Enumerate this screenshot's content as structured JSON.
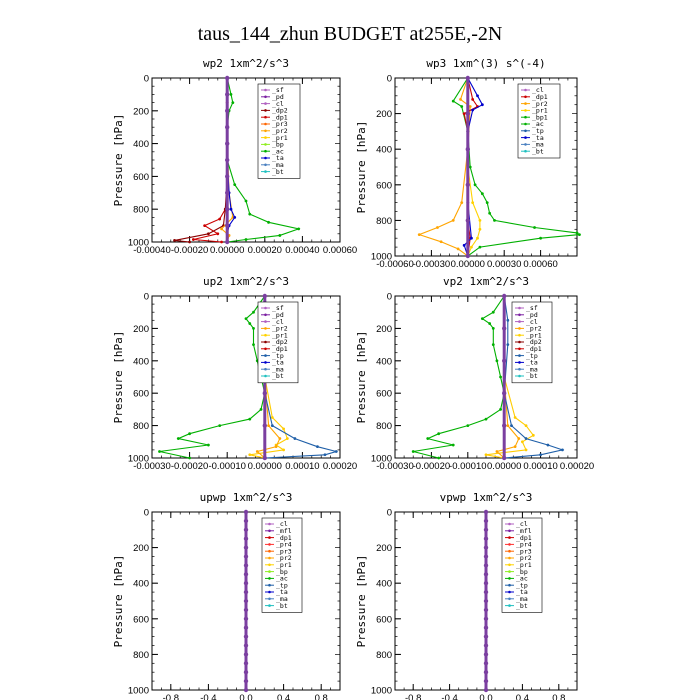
{
  "title": "taus_144_zhun  BUDGET at255E,-2N",
  "chart_data": [
    {
      "id": "wp2",
      "type": "line",
      "title": "wp2  1xm^2/s^3",
      "ylabel": "Pressure [hPa]",
      "ylim": [
        1000,
        0
      ],
      "xlim": [
        -0.0004,
        0.0006
      ],
      "xticks": [
        -0.0004,
        -0.0002,
        0.0,
        0.0002,
        0.0004,
        0.0006
      ],
      "xticklabels": [
        "-0.00040",
        "-0.00020",
        "0.00000",
        "0.00020",
        "0.00040",
        "0.00060"
      ],
      "yticks": [
        0,
        200,
        400,
        600,
        800,
        1000
      ],
      "legend": [
        "_sf",
        "_pd",
        "_cl",
        "_dp2",
        "_dp1",
        "_pr3",
        "_pr2",
        "_pr1",
        "_bp",
        "_ac",
        "_ta",
        "_ma",
        "_bt"
      ],
      "series": [
        {
          "name": "_dp1",
          "color": "#cc0000",
          "p": [
            0,
            150,
            300,
            500,
            700,
            800,
            860,
            900,
            950,
            985,
            1000
          ],
          "x": [
            0,
            0,
            0,
            0,
            0,
            -1e-05,
            -4e-05,
            -0.00012,
            -5e-05,
            -0.00018,
            -3e-05
          ]
        },
        {
          "name": "_dp2",
          "color": "#8b0000",
          "p": [
            0,
            300,
            600,
            800,
            900,
            950,
            990,
            1000
          ],
          "x": [
            0,
            0,
            0,
            -1e-05,
            -2e-05,
            -0.0001,
            -0.00028,
            -0.0002
          ]
        },
        {
          "name": "_pr1",
          "color": "#ffa500",
          "p": [
            0,
            400,
            700,
            850,
            920,
            960,
            1000
          ],
          "x": [
            0,
            0,
            1e-05,
            3e-05,
            -3e-05,
            1e-05,
            0
          ]
        },
        {
          "name": "_ac",
          "color": "#00b000",
          "p": [
            0,
            100,
            150,
            200,
            300,
            500,
            650,
            750,
            830,
            880,
            920,
            960,
            985,
            1000
          ],
          "x": [
            0,
            2e-05,
            3e-05,
            1e-05,
            0,
            0,
            4e-05,
            0.0001,
            0.00012,
            0.00022,
            0.00038,
            0.00028,
            0.0001,
            0
          ]
        },
        {
          "name": "_tp",
          "color": "#0000cc",
          "p": [
            0,
            500,
            700,
            800,
            850,
            900,
            950,
            1000
          ],
          "x": [
            0,
            0,
            1e-05,
            2e-05,
            4e-05,
            1e-05,
            0,
            0
          ]
        },
        {
          "name": "_bt",
          "color": "#7b3fa0",
          "p": [
            0,
            100,
            200,
            300,
            400,
            500,
            600,
            700,
            800,
            900,
            1000
          ],
          "x": [
            0,
            0,
            0,
            0,
            0,
            0,
            0,
            0,
            0,
            0,
            0
          ]
        }
      ]
    },
    {
      "id": "wp3",
      "type": "line",
      "title": "wp3  1xm^(3) s^(-4)",
      "ylabel": "Pressure [hPa]",
      "ylim": [
        1000,
        0
      ],
      "xlim": [
        -0.0006,
        0.0009
      ],
      "xticks": [
        -0.0006,
        -0.0003,
        0.0,
        0.0003,
        0.0006
      ],
      "xticklabels": [
        "-0.00060",
        "-0.00030",
        "0.00000",
        "0.00030",
        "0.00060"
      ],
      "yticks": [
        0,
        200,
        400,
        600,
        800,
        1000
      ],
      "legend": [
        "_cl",
        "_dp1",
        "_pr2",
        "_pr1",
        "_bp1",
        "_ac",
        "_tp",
        "_ta",
        "_ma",
        "_bt"
      ],
      "series": [
        {
          "name": "_pr1",
          "color": "#ffa500",
          "p": [
            0,
            120,
            160,
            400,
            700,
            800,
            840,
            880,
            920,
            960,
            1000
          ],
          "x": [
            0,
            -6e-05,
            2e-05,
            0,
            -5e-05,
            -0.00012,
            -0.00025,
            -0.0004,
            -0.00022,
            -8e-05,
            0
          ]
        },
        {
          "name": "_pr2",
          "color": "#ffd200",
          "p": [
            0,
            500,
            700,
            800,
            850,
            900,
            950,
            1000
          ],
          "x": [
            0,
            0,
            4e-05,
            0.0001,
            0.0001,
            8e-05,
            3e-05,
            0
          ]
        },
        {
          "name": "_ac",
          "color": "#00b000",
          "p": [
            0,
            130,
            160,
            300,
            500,
            600,
            650,
            700,
            760,
            800,
            840,
            870,
            880,
            900,
            950,
            1000
          ],
          "x": [
            0,
            -0.00012,
            -5e-05,
            0,
            2e-05,
            6e-05,
            0.00012,
            0.00016,
            0.00018,
            0.00022,
            0.00055,
            0.0009,
            0.00092,
            0.0006,
            0.0001,
            0
          ]
        },
        {
          "name": "_dp1",
          "color": "#cc0000",
          "p": [
            0,
            120,
            160,
            200,
            300,
            600,
            800,
            900,
            1000
          ],
          "x": [
            0,
            4e-05,
            8e-05,
            -3e-05,
            0,
            0,
            0,
            2e-05,
            0
          ]
        },
        {
          "name": "_tp",
          "color": "#0000cc",
          "p": [
            0,
            100,
            150,
            180,
            300,
            700,
            900,
            940,
            1000
          ],
          "x": [
            0,
            8e-05,
            0.00012,
            4e-05,
            0,
            0,
            3e-05,
            -3e-05,
            0
          ]
        },
        {
          "name": "_bt",
          "color": "#7b3fa0",
          "p": [
            0,
            200,
            400,
            600,
            800,
            1000
          ],
          "x": [
            0,
            0,
            0,
            0,
            0,
            0
          ]
        }
      ]
    },
    {
      "id": "up2",
      "type": "line",
      "title": "up2  1xm^2/s^3",
      "ylabel": "Pressure [hPa]",
      "ylim": [
        1000,
        0
      ],
      "xlim": [
        -0.0003,
        0.0002
      ],
      "xticks": [
        -0.0003,
        -0.0002,
        -0.0001,
        0.0,
        0.0001,
        0.0002
      ],
      "xticklabels": [
        "-0.00030",
        "-0.00020",
        "-0.00010",
        "0.00000",
        "0.00010",
        "0.00020"
      ],
      "yticks": [
        0,
        200,
        400,
        600,
        800,
        1000
      ],
      "legend": [
        "_sf",
        "_pd",
        "_cl",
        "_pr2",
        "_pr1",
        "_dp2",
        "_dp1",
        "_tp",
        "_ta",
        "_ma",
        "_bt"
      ],
      "series": [
        {
          "name": "_dp1",
          "color": "#00b000",
          "p": [
            0,
            100,
            140,
            170,
            200,
            300,
            400,
            500,
            600,
            700,
            760,
            800,
            850,
            880,
            920,
            960,
            1000
          ],
          "x": [
            0,
            -3e-05,
            -5e-05,
            -4e-05,
            -3e-05,
            -3e-05,
            -2e-05,
            -1e-05,
            0,
            -1e-05,
            -4e-05,
            -0.00012,
            -0.0002,
            -0.00023,
            -0.00015,
            -0.00028,
            -0.0002
          ]
        },
        {
          "name": "_pr1",
          "color": "#ffcc00",
          "p": [
            0,
            200,
            500,
            750,
            820,
            880,
            920,
            950,
            980,
            1000
          ],
          "x": [
            0,
            0,
            0,
            2e-05,
            5e-05,
            6e-05,
            3e-05,
            5e-05,
            -4e-05,
            0
          ]
        },
        {
          "name": "_pr2",
          "color": "#ffa500",
          "p": [
            0,
            500,
            800,
            880,
            930,
            960,
            1000
          ],
          "x": [
            0,
            0,
            1e-05,
            4e-05,
            3e-05,
            -2e-05,
            0
          ]
        },
        {
          "name": "_tp",
          "color": "#1f5fa8",
          "p": [
            0,
            150,
            300,
            600,
            800,
            880,
            930,
            960,
            980,
            1000
          ],
          "x": [
            0,
            1e-05,
            1e-05,
            0,
            2e-05,
            8e-05,
            0.00014,
            0.00019,
            0.00016,
            0
          ]
        },
        {
          "name": "_dp2",
          "color": "#cc0000",
          "p": [
            0,
            200,
            400,
            600,
            800,
            1000
          ],
          "x": [
            0,
            0,
            0,
            0,
            0,
            0
          ]
        },
        {
          "name": "_bt",
          "color": "#7b3fa0",
          "p": [
            0,
            200,
            400,
            600,
            800,
            1000
          ],
          "x": [
            0,
            0,
            0,
            0,
            0,
            0
          ]
        }
      ]
    },
    {
      "id": "vp2",
      "type": "line",
      "title": "vp2  1xm^2/s^3",
      "ylabel": "Pressure [hPa]",
      "ylim": [
        1000,
        0
      ],
      "xlim": [
        -0.0003,
        0.0002
      ],
      "xticks": [
        -0.0003,
        -0.0002,
        -0.0001,
        0.0,
        0.0001,
        0.0002
      ],
      "xticklabels": [
        "-0.00030",
        "-0.00020",
        "-0.00010",
        "0.00000",
        "0.00010",
        "0.00020"
      ],
      "yticks": [
        0,
        200,
        400,
        600,
        800,
        1000
      ],
      "legend": [
        "_sf",
        "_pd",
        "_cl",
        "_pr2",
        "_pr1",
        "_dp2",
        "_dp1",
        "_tp",
        "_ta",
        "_ma",
        "_bt"
      ],
      "series": [
        {
          "name": "_dp1",
          "color": "#00b000",
          "p": [
            0,
            100,
            140,
            170,
            200,
            300,
            400,
            500,
            600,
            700,
            760,
            800,
            850,
            880,
            920,
            960,
            1000
          ],
          "x": [
            0,
            -3e-05,
            -6e-05,
            -4e-05,
            -3e-05,
            -3e-05,
            -2e-05,
            -1e-05,
            0,
            -1e-05,
            -5e-05,
            -0.0001,
            -0.00018,
            -0.00021,
            -0.00014,
            -0.00025,
            -0.00018
          ]
        },
        {
          "name": "_pr1",
          "color": "#ffcc00",
          "p": [
            0,
            200,
            500,
            750,
            800,
            860,
            900,
            950,
            980,
            1000
          ],
          "x": [
            0,
            0,
            0,
            3e-05,
            6e-05,
            8e-05,
            5e-05,
            6e-05,
            -5e-05,
            0
          ]
        },
        {
          "name": "_pr2",
          "color": "#ffa500",
          "p": [
            0,
            500,
            800,
            880,
            930,
            960,
            1000
          ],
          "x": [
            0,
            0,
            1e-05,
            4e-05,
            3e-05,
            -2e-05,
            0
          ]
        },
        {
          "name": "_tp",
          "color": "#1f5fa8",
          "p": [
            0,
            150,
            300,
            600,
            800,
            880,
            920,
            950,
            980,
            1000
          ],
          "x": [
            0,
            1e-05,
            1e-05,
            0,
            2e-05,
            6e-05,
            0.00012,
            0.00016,
            0.0001,
            0
          ]
        },
        {
          "name": "_dp2",
          "color": "#cc0000",
          "p": [
            0,
            200,
            400,
            600,
            800,
            1000
          ],
          "x": [
            0,
            0,
            0,
            0,
            0,
            0
          ]
        },
        {
          "name": "_bt",
          "color": "#7b3fa0",
          "p": [
            0,
            200,
            400,
            600,
            800,
            1000
          ],
          "x": [
            0,
            0,
            0,
            0,
            0,
            0
          ]
        }
      ]
    },
    {
      "id": "upwp",
      "type": "line",
      "title": "upwp  1xm^2/s^3",
      "ylabel": "Pressure [hPa]",
      "ylim": [
        1000,
        0
      ],
      "xlim": [
        -1,
        1
      ],
      "xticks": [
        -0.8,
        -0.4,
        0.0,
        0.4,
        0.8
      ],
      "xticklabels": [
        "-0.8",
        "-0.4",
        "0.0",
        "0.4",
        "0.8"
      ],
      "yticks": [
        0,
        200,
        400,
        600,
        800,
        1000
      ],
      "legend": [
        "_cl",
        "_mfl",
        "_dp1",
        "_pr4",
        "_pr3",
        "_pr2",
        "_pr1",
        "_bp",
        "_ac",
        "_tp",
        "_ta",
        "_ma",
        "_bt"
      ],
      "series": [
        {
          "name": "_bt",
          "color": "#7b3fa0",
          "p": [
            0,
            50,
            100,
            150,
            200,
            250,
            300,
            350,
            400,
            450,
            500,
            550,
            600,
            650,
            700,
            750,
            800,
            850,
            900,
            950,
            1000
          ],
          "x": [
            0,
            0,
            0,
            0,
            0,
            0,
            0,
            0,
            0,
            0,
            0,
            0,
            0,
            0,
            0,
            0,
            0,
            0,
            0,
            0,
            0
          ]
        }
      ]
    },
    {
      "id": "vpwp",
      "type": "line",
      "title": "vpwp  1xm^2/s^3",
      "ylabel": "Pressure [hPa]",
      "ylim": [
        1000,
        0
      ],
      "xlim": [
        -1,
        1
      ],
      "xticks": [
        -0.8,
        -0.4,
        0.0,
        0.4,
        0.8
      ],
      "xticklabels": [
        "-0.8",
        "-0.4",
        "0.0",
        "0.4",
        "0.8"
      ],
      "yticks": [
        0,
        200,
        400,
        600,
        800,
        1000
      ],
      "legend": [
        "_cl",
        "_mfl",
        "_dp1",
        "_pr4",
        "_pr3",
        "_pr2",
        "_pr1",
        "_bp",
        "_ac",
        "_tp",
        "_ta",
        "_ma",
        "_bt"
      ],
      "series": [
        {
          "name": "_bt",
          "color": "#7b3fa0",
          "p": [
            0,
            50,
            100,
            150,
            200,
            250,
            300,
            350,
            400,
            450,
            500,
            550,
            600,
            650,
            700,
            750,
            800,
            850,
            900,
            950,
            1000
          ],
          "x": [
            0,
            0,
            0,
            0,
            0,
            0,
            0,
            0,
            0,
            0,
            0,
            0,
            0,
            0,
            0,
            0,
            0,
            0,
            0,
            0,
            0
          ]
        }
      ]
    }
  ],
  "legend_colors": {
    "_sf": "#b060c0",
    "_pd": "#7b1fa2",
    "_cl": "#b060c0",
    "_dp2": "#8b0000",
    "_dp1": "#cc0000",
    "_pr4": "#ff3030",
    "_pr3": "#ff6600",
    "_pr2": "#ffa500",
    "_pr1": "#ffd200",
    "_bp": "#90ee20",
    "_bp1": "#00b000",
    "_ac": "#00b000",
    "_tp": "#1f5fa8",
    "_ta": "#0000cc",
    "_ma": "#4a80c0",
    "_bt": "#20c0c0",
    "_mfl": "#7b1fa2"
  }
}
